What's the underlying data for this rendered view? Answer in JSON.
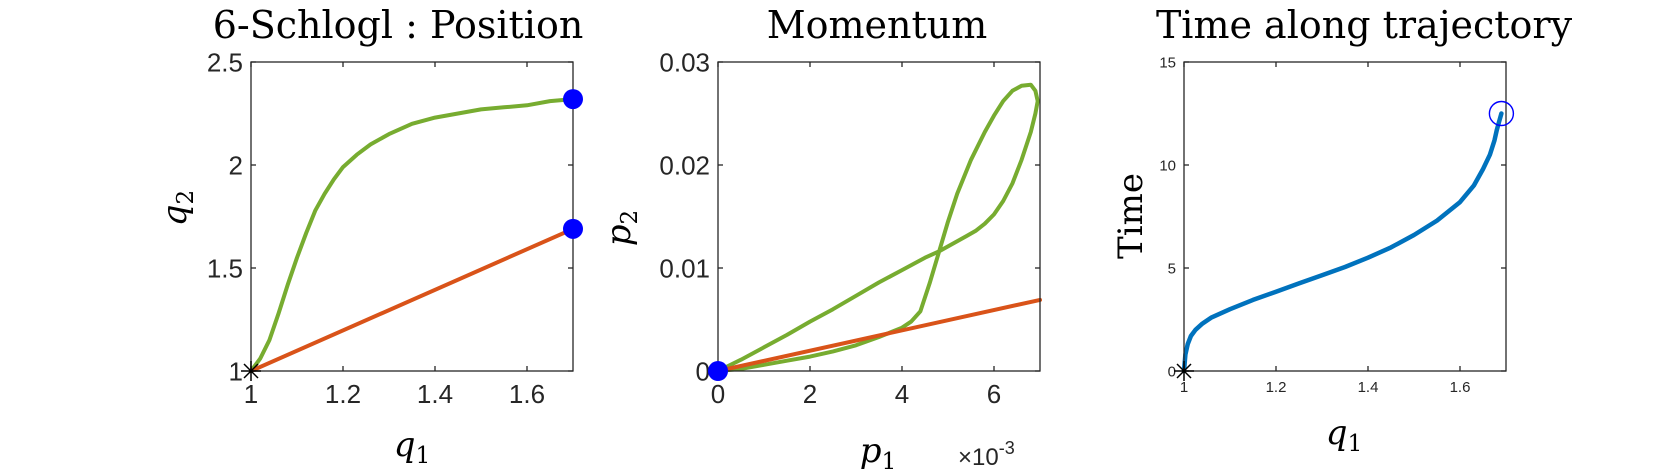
{
  "chart_data": [
    {
      "type": "line",
      "title": "6-Schlogl : Position",
      "xlabel": "q",
      "xlabel_sub": "1",
      "ylabel": "q",
      "ylabel_sub": "2",
      "xlim": [
        1,
        1.7
      ],
      "ylim": [
        1,
        2.5
      ],
      "xticks": [
        1,
        1.2,
        1.4,
        1.6
      ],
      "xtick_labels": [
        "1",
        "1.2",
        "1.4",
        "1.6"
      ],
      "yticks": [
        1,
        1.5,
        2,
        2.5
      ],
      "ytick_labels": [
        "1",
        "1.5",
        "2",
        "2.5"
      ],
      "grid": false,
      "series": [
        {
          "color": "#77ac30",
          "x": [
            1.0,
            1.02,
            1.04,
            1.06,
            1.08,
            1.1,
            1.12,
            1.14,
            1.16,
            1.18,
            1.2,
            1.23,
            1.26,
            1.3,
            1.35,
            1.4,
            1.45,
            1.5,
            1.55,
            1.6,
            1.65,
            1.7
          ],
          "y": [
            1.0,
            1.06,
            1.15,
            1.28,
            1.42,
            1.55,
            1.67,
            1.78,
            1.86,
            1.93,
            1.99,
            2.05,
            2.1,
            2.15,
            2.2,
            2.23,
            2.25,
            2.27,
            2.28,
            2.29,
            2.31,
            2.32
          ]
        },
        {
          "color": "#d95319",
          "x": [
            1.0,
            1.7
          ],
          "y": [
            1.0,
            1.69
          ]
        }
      ],
      "markers": [
        {
          "shape": "filled-circle",
          "color": "#0000ff",
          "x": 1.7,
          "y": 2.32
        },
        {
          "shape": "filled-circle",
          "color": "#0000ff",
          "x": 1.7,
          "y": 1.69
        },
        {
          "shape": "asterisk",
          "color": "#000000",
          "x": 1.0,
          "y": 1.0
        }
      ]
    },
    {
      "type": "line",
      "title": "Momentum",
      "xlabel": "p",
      "xlabel_sub": "1",
      "ylabel": "p",
      "ylabel_sub": "2",
      "x_exponent_prefix": "×10",
      "x_exponent": "-3",
      "xlim": [
        0,
        0.007
      ],
      "ylim": [
        0,
        0.03
      ],
      "xticks": [
        0,
        0.002,
        0.004,
        0.006
      ],
      "xtick_labels": [
        "0",
        "2",
        "4",
        "6"
      ],
      "yticks": [
        0,
        0.01,
        0.02,
        0.03
      ],
      "ytick_labels": [
        "0",
        "0.01",
        "0.02",
        "0.03"
      ],
      "grid": false,
      "series": [
        {
          "color": "#77ac30",
          "x": [
            0,
            0.0005,
            0.001,
            0.0015,
            0.002,
            0.0025,
            0.003,
            0.0035,
            0.004,
            0.0042,
            0.0044,
            0.0046,
            0.0048,
            0.005,
            0.0052,
            0.0055,
            0.0058,
            0.006,
            0.0062,
            0.0064,
            0.0066,
            0.0068,
            0.0069,
            0.00695,
            0.0069,
            0.0068,
            0.0066,
            0.0064,
            0.0062,
            0.006,
            0.0058,
            0.0056,
            0.0054,
            0.0052,
            0.005,
            0.0048,
            0.0045,
            0.004,
            0.0035,
            0.003,
            0.0025,
            0.002,
            0.0015,
            0.001,
            0.0005,
            0
          ],
          "y": [
            0,
            0.0002,
            0.0006,
            0.001,
            0.0014,
            0.0019,
            0.0025,
            0.0033,
            0.0042,
            0.0048,
            0.0058,
            0.0085,
            0.0115,
            0.0145,
            0.0172,
            0.0205,
            0.0232,
            0.0248,
            0.0262,
            0.0272,
            0.0277,
            0.0278,
            0.0272,
            0.0262,
            0.025,
            0.0232,
            0.0205,
            0.0182,
            0.0165,
            0.0152,
            0.0143,
            0.0136,
            0.0131,
            0.0126,
            0.0121,
            0.0116,
            0.011,
            0.0098,
            0.0086,
            0.0073,
            0.006,
            0.0048,
            0.0035,
            0.0023,
            0.0011,
            0
          ]
        },
        {
          "color": "#d95319",
          "x": [
            0,
            0.007
          ],
          "y": [
            0,
            0.0069
          ]
        }
      ],
      "markers": [
        {
          "shape": "filled-circle",
          "color": "#0000ff",
          "x": 0,
          "y": 0
        }
      ]
    },
    {
      "type": "line",
      "title": "Time along trajectory",
      "xlabel": "q",
      "xlabel_sub": "1",
      "ylabel": "Time",
      "xlim": [
        1,
        1.7
      ],
      "ylim": [
        0,
        15
      ],
      "xticks": [
        1,
        1.2,
        1.4,
        1.6
      ],
      "xtick_labels": [
        "1",
        "1.2",
        "1.4",
        "1.6"
      ],
      "yticks": [
        0,
        5,
        10,
        15
      ],
      "ytick_labels": [
        "0",
        "5",
        "10",
        "15"
      ],
      "grid": false,
      "series": [
        {
          "color": "#0072bd",
          "x": [
            1.0,
            1.003,
            1.008,
            1.015,
            1.025,
            1.04,
            1.06,
            1.1,
            1.15,
            1.2,
            1.25,
            1.3,
            1.35,
            1.4,
            1.45,
            1.5,
            1.55,
            1.6,
            1.63,
            1.65,
            1.665,
            1.675,
            1.68,
            1.685,
            1.69
          ],
          "y": [
            0,
            0.8,
            1.3,
            1.7,
            2.0,
            2.3,
            2.6,
            3.0,
            3.45,
            3.85,
            4.25,
            4.65,
            5.05,
            5.5,
            6.0,
            6.6,
            7.3,
            8.2,
            9.0,
            9.8,
            10.5,
            11.2,
            11.7,
            12.1,
            12.5
          ]
        }
      ],
      "markers": [
        {
          "shape": "open-circle",
          "color": "#0000ff",
          "x": 1.69,
          "y": 12.5
        },
        {
          "shape": "asterisk",
          "color": "#000000",
          "x": 1.0,
          "y": 0
        }
      ]
    }
  ]
}
